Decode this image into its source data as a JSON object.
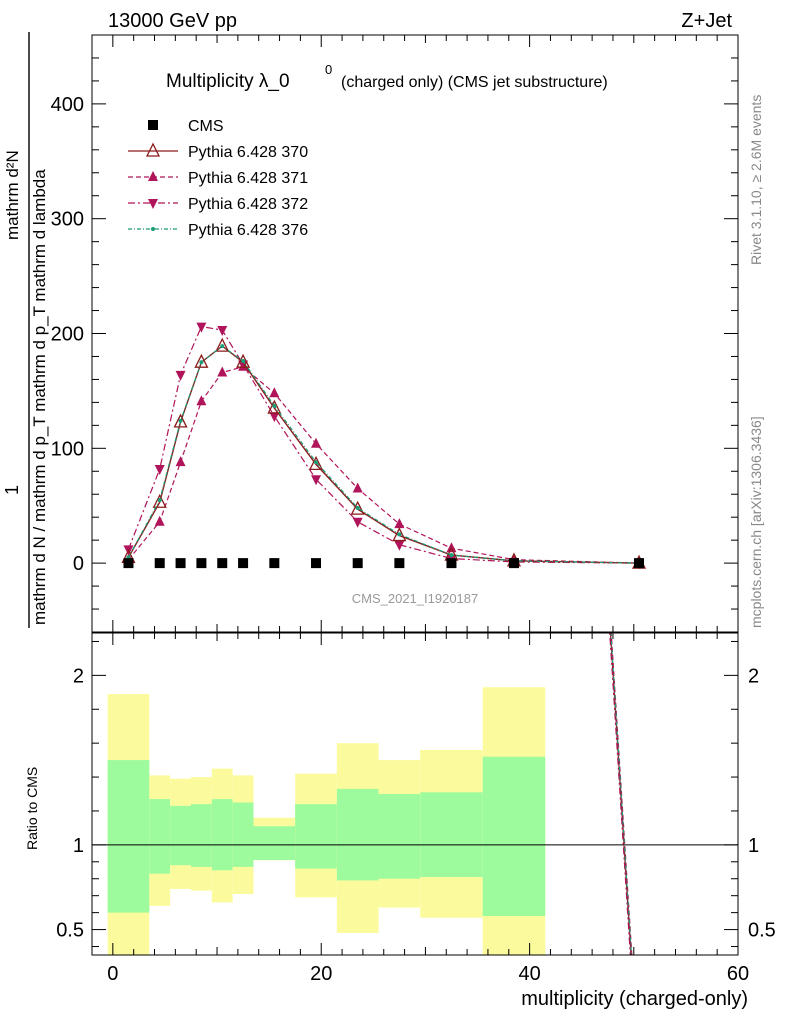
{
  "header": {
    "left": "13000 GeV pp",
    "right": "Z+Jet"
  },
  "side_labels": {
    "rivet": "Rivet 3.1.10, ≥ 2.6M events",
    "mcplots": "mcplots.cern.ch [arXiv:1306.3436]"
  },
  "watermark": "CMS_2021_I1920187",
  "chart_data": {
    "type": "scatter",
    "title_main": "Multiplicity λ_0",
    "title_sup": "0",
    "title_rest": "(charged only) (CMS jet substructure)",
    "xlabel": "multiplicity (charged-only)",
    "ylabel_num": "1",
    "ylabel_den": "mathrm d N / mathrm d p_T mathrm d p_T mathrm d lambda",
    "ylabel_num2": "mathrm d²N",
    "xlim": [
      -2,
      60
    ],
    "ylim": [
      -60,
      460
    ],
    "x_ticks": [
      "0",
      "20",
      "40",
      "60"
    ],
    "y_ticks": [
      "0",
      "100",
      "200",
      "300",
      "400"
    ],
    "grid": false,
    "legend_position": "top-left",
    "x": [
      1.5,
      4.5,
      6.5,
      8.5,
      10.5,
      12.5,
      15.5,
      19.5,
      23.5,
      27.5,
      32.5,
      38.5,
      50.5
    ],
    "series": [
      {
        "name": "CMS",
        "color": "#000000",
        "marker": "square",
        "line": "none",
        "values": [
          0,
          0,
          0,
          0,
          0,
          0,
          0,
          0,
          0,
          0,
          0,
          0,
          0
        ]
      },
      {
        "name": "Pythia 6.428 370",
        "color": "#8b1a1a",
        "marker": "triangle-up-open",
        "line": "solid",
        "values": [
          5,
          53,
          123,
          175,
          189,
          175,
          135,
          86,
          47,
          24,
          7,
          2,
          0
        ]
      },
      {
        "name": "Pythia 6.428 371",
        "color": "#b0145a",
        "marker": "triangle-up",
        "line": "dashed",
        "values": [
          3,
          36,
          88,
          141,
          166,
          171,
          148,
          104,
          65,
          34,
          13,
          3,
          0
        ]
      },
      {
        "name": "Pythia 6.428 372",
        "color": "#b0145a",
        "marker": "triangle-down",
        "line": "dashdot",
        "values": [
          12,
          82,
          164,
          206,
          203,
          173,
          128,
          73,
          36,
          16,
          4,
          1,
          0
        ]
      },
      {
        "name": "Pythia 6.428 376",
        "color": "#1a9e77",
        "marker": "dot",
        "line": "dashdot-fine",
        "values": [
          5,
          55,
          124,
          175,
          189,
          176,
          137,
          88,
          48,
          25,
          7,
          2,
          0
        ]
      }
    ],
    "ratio": {
      "ylabel": "Ratio to CMS",
      "ylim": [
        0.35,
        2.25
      ],
      "y_ticks": [
        "0.5",
        "1",
        "2"
      ],
      "band_edges": [
        -0.5,
        3.5,
        5.5,
        7.5,
        9.5,
        11.5,
        13.5,
        17.5,
        21.5,
        25.5,
        29.5,
        35.5,
        41.5
      ],
      "inner_band_high": [
        1.5,
        1.27,
        1.23,
        1.24,
        1.27,
        1.25,
        1.11,
        1.24,
        1.33,
        1.3,
        1.31,
        1.52
      ],
      "inner_band_low": [
        0.6,
        0.83,
        0.88,
        0.87,
        0.85,
        0.87,
        0.91,
        0.86,
        0.79,
        0.8,
        0.81,
        0.58
      ],
      "outer_band_high": [
        1.89,
        1.41,
        1.39,
        1.4,
        1.45,
        1.41,
        1.16,
        1.42,
        1.6,
        1.5,
        1.56,
        1.93
      ],
      "outer_band_low": [
        0.32,
        0.64,
        0.74,
        0.73,
        0.66,
        0.71,
        0.91,
        0.69,
        0.48,
        0.63,
        0.57,
        0.32
      ],
      "inner_color": "#9dfb9d",
      "outer_color": "#fbfb9d"
    }
  }
}
